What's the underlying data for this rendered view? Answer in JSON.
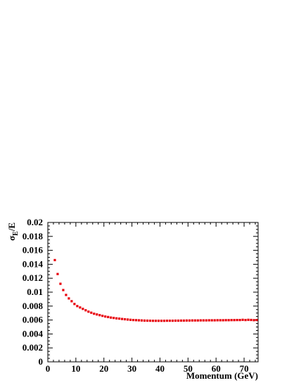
{
  "chart_data": {
    "type": "scatter",
    "xlabel": "Momentum (GeV)",
    "ylabel_symbol": "σ",
    "ylabel_subscript": "E",
    "ylabel_suffix": "/E",
    "xlim": [
      0,
      75
    ],
    "ylim": [
      0,
      0.02
    ],
    "x_ticks": [
      0,
      10,
      20,
      30,
      40,
      50,
      60,
      70
    ],
    "x_tick_labels": [
      "0",
      "10",
      "20",
      "30",
      "40",
      "50",
      "60",
      "70"
    ],
    "y_ticks": [
      0,
      0.002,
      0.004,
      0.006,
      0.008,
      0.01,
      0.012,
      0.014,
      0.016,
      0.018,
      0.02
    ],
    "y_tick_labels": [
      "0",
      "0.002",
      "0.004",
      "0.006",
      "0.008",
      "0.01",
      "0.012",
      "0.014",
      "0.016",
      "0.018",
      "0.02"
    ],
    "grid": false,
    "marker_color": "#e8000b",
    "series": [
      {
        "x": [
          2.5,
          3.5,
          4.5,
          5.5,
          6.5,
          7.5,
          8.5,
          9.5,
          10.5,
          11.5,
          12.5,
          13.5,
          14.5,
          15.5,
          16.5,
          17.5,
          18.5,
          19.5,
          20.5,
          21.5,
          22.5,
          23.5,
          24.5,
          25.5,
          26.5,
          27.5,
          28.5,
          29.5,
          30.5,
          31.5,
          32.5,
          33.5,
          34.5,
          35.5,
          36.5,
          37.5,
          38.5,
          39.5,
          40.5,
          41.5,
          42.5,
          43.5,
          44.5,
          45.5,
          46.5,
          47.5,
          48.5,
          49.5,
          50.5,
          51.5,
          52.5,
          53.5,
          54.5,
          55.5,
          56.5,
          57.5,
          58.5,
          59.5,
          60.5,
          61.5,
          62.5,
          63.5,
          64.5,
          65.5,
          66.5,
          67.5,
          68.5,
          69.5,
          70.5,
          71.5,
          72.5,
          73.5,
          74.5
        ],
        "y": [
          0.0146,
          0.0126,
          0.0112,
          0.0103,
          0.0096,
          0.0091,
          0.0087,
          0.0083,
          0.008,
          0.0078,
          0.0076,
          0.0074,
          0.0072,
          0.00705,
          0.0069,
          0.0068,
          0.0067,
          0.0066,
          0.0065,
          0.00643,
          0.00635,
          0.0063,
          0.00624,
          0.0062,
          0.00615,
          0.00611,
          0.00607,
          0.00603,
          0.006,
          0.00598,
          0.00596,
          0.00594,
          0.00592,
          0.00591,
          0.0059,
          0.00589,
          0.00589,
          0.00589,
          0.00589,
          0.00589,
          0.0059,
          0.0059,
          0.0059,
          0.00591,
          0.00591,
          0.00592,
          0.00592,
          0.00593,
          0.00593,
          0.00594,
          0.00594,
          0.00594,
          0.00595,
          0.00595,
          0.00595,
          0.00596,
          0.00596,
          0.00596,
          0.00597,
          0.00597,
          0.00597,
          0.00598,
          0.00598,
          0.00599,
          0.00599,
          0.006,
          0.006,
          0.00603,
          0.006,
          0.00603,
          0.00601,
          0.00598,
          0.006
        ]
      }
    ]
  }
}
